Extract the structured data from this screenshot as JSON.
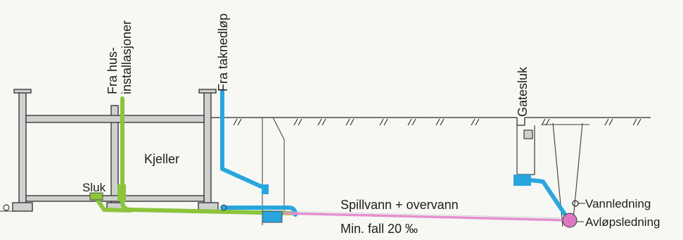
{
  "labels": {
    "fra_hus_line1": "Fra hus-",
    "fra_hus_line2": "installasjoner",
    "fra_taknedlop": "Fra taknedløp",
    "gatesluk": "Gatesluk",
    "kjeller": "Kjeller",
    "sluk": "Sluk",
    "spillvann_overvann": "Spillvann + overvann",
    "min_fall": "Min. fall 20 ‰",
    "vannledning": "Vannledning",
    "avlopsledning": "Avløpsledning"
  },
  "colors": {
    "wall_fill": "#cfd1cf",
    "wall_stroke": "#3a3a3a",
    "green_pipe": "#8cc43c",
    "blue_pipe": "#29a6df",
    "pink_pipe": "#e58fcf",
    "pink_node": "#dc79c0",
    "ground_line": "#2a2a2a"
  }
}
